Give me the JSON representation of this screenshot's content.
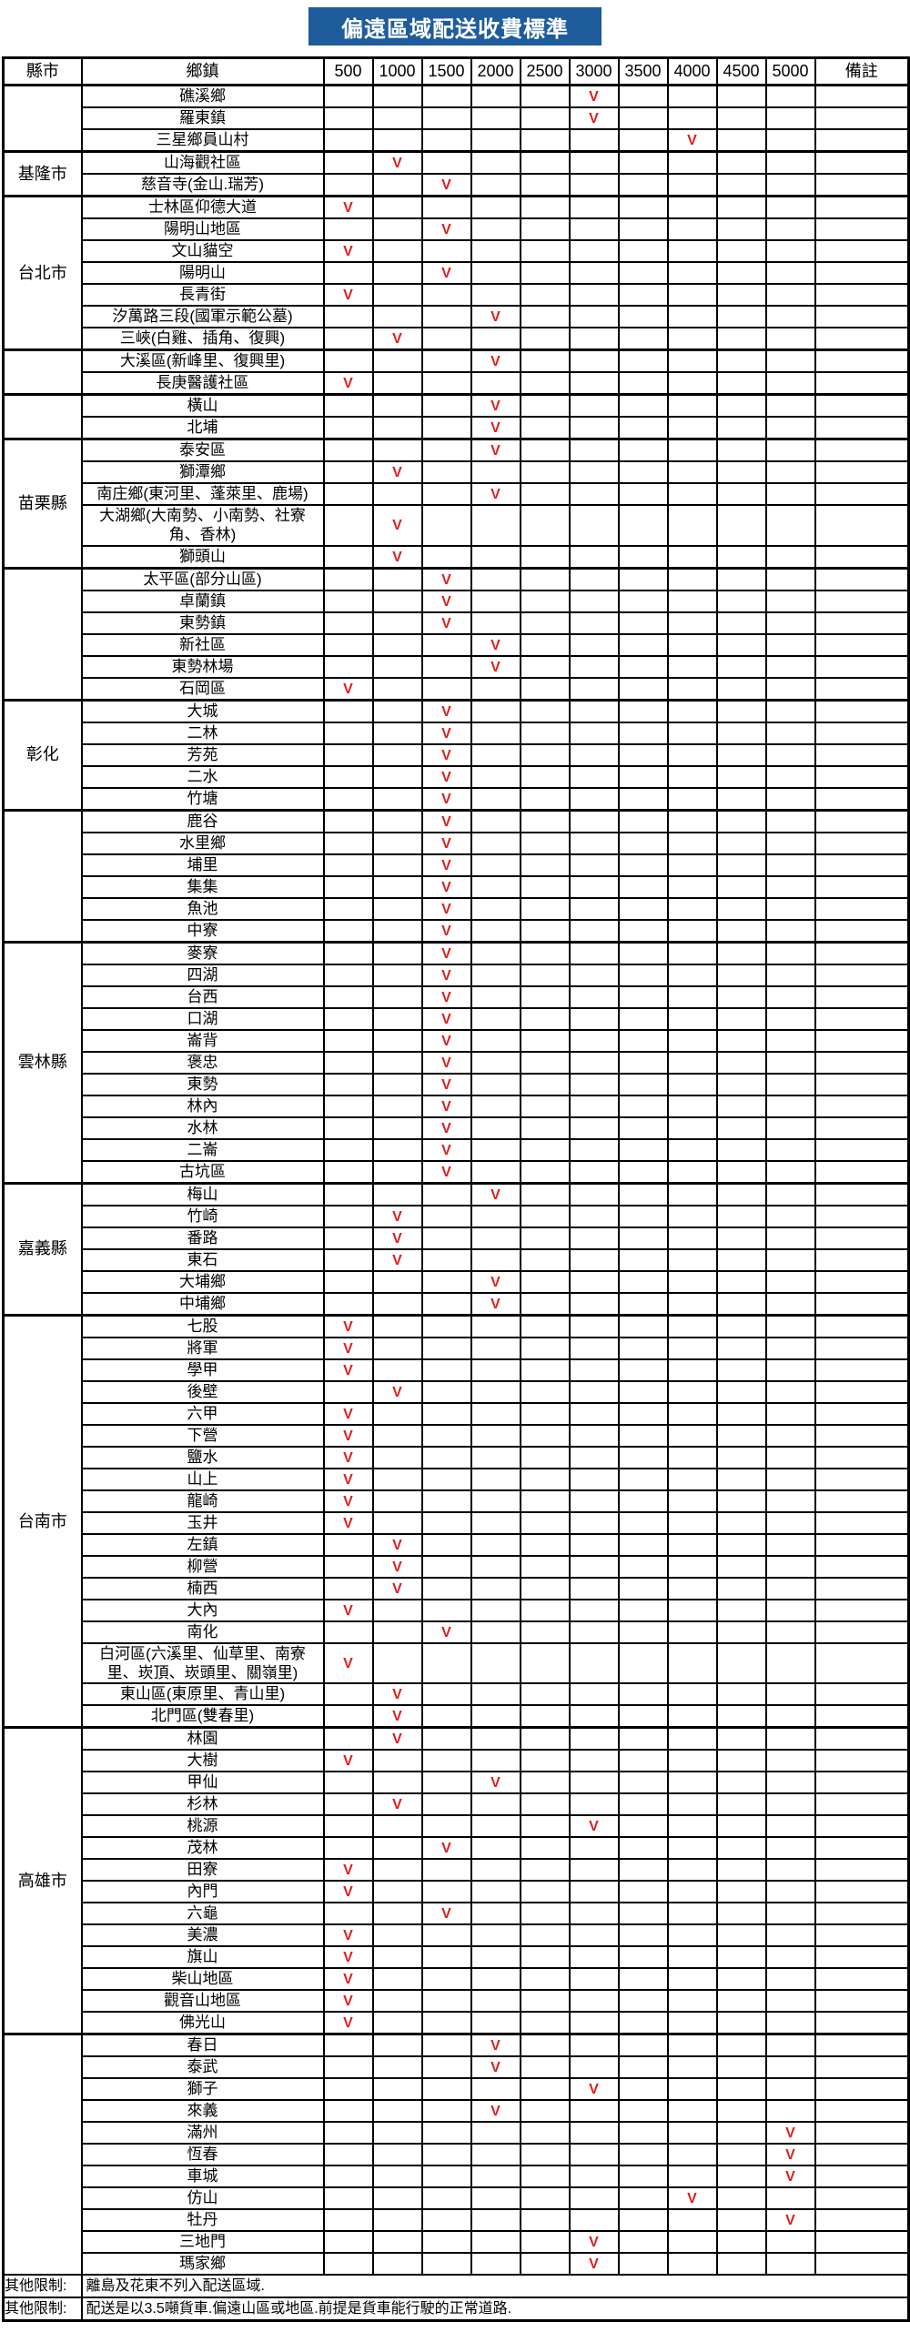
{
  "title": "偏遠區域配送收費標準",
  "colors": {
    "banner_bg": "#1E5C9C",
    "banner_text": "#FFFFFF",
    "check_red": "#E01E1E",
    "border": "#000000"
  },
  "table": {
    "columns": [
      "縣市",
      "鄉鎮",
      "500",
      "1000",
      "1500",
      "2000",
      "2500",
      "3000",
      "3500",
      "4000",
      "4500",
      "5000",
      "備註"
    ],
    "fee_tiers": [
      "500",
      "1000",
      "1500",
      "2000",
      "2500",
      "3000",
      "3500",
      "4000",
      "4500",
      "5000"
    ],
    "check_symbol": "V",
    "groups": [
      {
        "county": "",
        "rows": [
          {
            "township": "礁溪鄉",
            "fee": "3000"
          },
          {
            "township": "羅東鎮",
            "fee": "3000"
          },
          {
            "township": "三星鄉員山村",
            "fee": "4000"
          }
        ]
      },
      {
        "county": "基隆市",
        "rows": [
          {
            "township": "山海觀社區",
            "fee": "1000"
          },
          {
            "township": "慈音寺(金山.瑞芳)",
            "fee": "1500"
          }
        ]
      },
      {
        "county": "台北市",
        "rows": [
          {
            "township": "士林區仰德大道",
            "fee": "500"
          },
          {
            "township": "陽明山地區",
            "fee": "1500"
          },
          {
            "township": "文山貓空",
            "fee": "500"
          },
          {
            "township": "陽明山",
            "fee": "1500"
          },
          {
            "township": "長青街",
            "fee": "500"
          },
          {
            "township": "汐萬路三段(國軍示範公墓)",
            "fee": "2000"
          },
          {
            "township": "三峽(白雞、插角、復興)",
            "fee": "1000"
          }
        ]
      },
      {
        "county": "",
        "rows": [
          {
            "township": "大溪區(新峰里、復興里)",
            "fee": "2000"
          },
          {
            "township": "長庚醫護社區",
            "fee": "500"
          }
        ]
      },
      {
        "county": "",
        "rows": [
          {
            "township": "橫山",
            "fee": "2000"
          },
          {
            "township": "北埔",
            "fee": "2000"
          }
        ]
      },
      {
        "county": "苗栗縣",
        "rows": [
          {
            "township": "泰安區",
            "fee": "2000"
          },
          {
            "township": "獅潭鄉",
            "fee": "1000"
          },
          {
            "township": "南庄鄉(東河里、蓬萊里、鹿場)",
            "fee": "2000"
          },
          {
            "township": "大湖鄉(大南勢、小南勢、社寮角、香林)",
            "fee": "1000"
          },
          {
            "township": "獅頭山",
            "fee": "1000"
          }
        ]
      },
      {
        "county": "",
        "rows": [
          {
            "township": "太平區(部分山區)",
            "fee": "1500"
          },
          {
            "township": "卓蘭鎮",
            "fee": "1500"
          },
          {
            "township": "東勢鎮",
            "fee": "1500"
          },
          {
            "township": "新社區",
            "fee": "2000"
          },
          {
            "township": "東勢林場",
            "fee": "2000"
          },
          {
            "township": "石岡區",
            "fee": "500"
          }
        ]
      },
      {
        "county": "彰化",
        "rows": [
          {
            "township": "大城",
            "fee": "1500"
          },
          {
            "township": "二林",
            "fee": "1500"
          },
          {
            "township": "芳苑",
            "fee": "1500"
          },
          {
            "township": "二水",
            "fee": "1500"
          },
          {
            "township": "竹塘",
            "fee": "1500"
          }
        ]
      },
      {
        "county": "",
        "rows": [
          {
            "township": "鹿谷",
            "fee": "1500"
          },
          {
            "township": "水里鄉",
            "fee": "1500"
          },
          {
            "township": "埔里",
            "fee": "1500"
          },
          {
            "township": "集集",
            "fee": "1500"
          },
          {
            "township": "魚池",
            "fee": "1500"
          },
          {
            "township": "中寮",
            "fee": "1500"
          }
        ]
      },
      {
        "county": "雲林縣",
        "rows": [
          {
            "township": "麥寮",
            "fee": "1500"
          },
          {
            "township": "四湖",
            "fee": "1500"
          },
          {
            "township": "台西",
            "fee": "1500"
          },
          {
            "township": "口湖",
            "fee": "1500"
          },
          {
            "township": "崙背",
            "fee": "1500"
          },
          {
            "township": "褒忠",
            "fee": "1500"
          },
          {
            "township": "東勢",
            "fee": "1500"
          },
          {
            "township": "林內",
            "fee": "1500"
          },
          {
            "township": "水林",
            "fee": "1500"
          },
          {
            "township": "二崙",
            "fee": "1500"
          },
          {
            "township": "古坑區",
            "fee": "1500"
          }
        ]
      },
      {
        "county": "嘉義縣",
        "rows": [
          {
            "township": "梅山",
            "fee": "2000"
          },
          {
            "township": "竹崎",
            "fee": "1000"
          },
          {
            "township": "番路",
            "fee": "1000"
          },
          {
            "township": "東石",
            "fee": "1000"
          },
          {
            "township": "大埔鄉",
            "fee": "2000"
          },
          {
            "township": "中埔鄉",
            "fee": "2000"
          }
        ]
      },
      {
        "county": "台南市",
        "rows": [
          {
            "township": "七股",
            "fee": "500"
          },
          {
            "township": "將軍",
            "fee": "500"
          },
          {
            "township": "學甲",
            "fee": "500"
          },
          {
            "township": "後壁",
            "fee": "1000"
          },
          {
            "township": "六甲",
            "fee": "500"
          },
          {
            "township": "下營",
            "fee": "500"
          },
          {
            "township": "鹽水",
            "fee": "500"
          },
          {
            "township": "山上",
            "fee": "500"
          },
          {
            "township": "龍崎",
            "fee": "500"
          },
          {
            "township": "玉井",
            "fee": "500"
          },
          {
            "township": "左鎮",
            "fee": "1000"
          },
          {
            "township": "柳營",
            "fee": "1000"
          },
          {
            "township": "楠西",
            "fee": "1000"
          },
          {
            "township": "大內",
            "fee": "500"
          },
          {
            "township": "南化",
            "fee": "1500"
          },
          {
            "township": "白河區(六溪里、仙草里、南寮里、崁頂、崁頭里、關嶺里)",
            "fee": "500"
          },
          {
            "township": "東山區(東原里、青山里)",
            "fee": "1000"
          },
          {
            "township": "北門區(雙春里)",
            "fee": "1000"
          }
        ]
      },
      {
        "county": "高雄市",
        "rows": [
          {
            "township": "林園",
            "fee": "1000"
          },
          {
            "township": "大樹",
            "fee": "500"
          },
          {
            "township": "甲仙",
            "fee": "2000"
          },
          {
            "township": "杉林",
            "fee": "1000"
          },
          {
            "township": "桃源",
            "fee": "3000"
          },
          {
            "township": "茂林",
            "fee": "1500"
          },
          {
            "township": "田寮",
            "fee": "500"
          },
          {
            "township": "內門",
            "fee": "500"
          },
          {
            "township": "六龜",
            "fee": "1500"
          },
          {
            "township": "美濃",
            "fee": "500"
          },
          {
            "township": "旗山",
            "fee": "500"
          },
          {
            "township": "柴山地區",
            "fee": "500"
          },
          {
            "township": "觀音山地區",
            "fee": "500"
          },
          {
            "township": "佛光山",
            "fee": "500"
          }
        ]
      },
      {
        "county": "",
        "rows": [
          {
            "township": "春日",
            "fee": "2000"
          },
          {
            "township": "泰武",
            "fee": "2000"
          },
          {
            "township": "獅子",
            "fee": "3000"
          },
          {
            "township": "來義",
            "fee": "2000"
          },
          {
            "township": "滿州",
            "fee": "5000"
          },
          {
            "township": "恆春",
            "fee": "5000"
          },
          {
            "township": "車城",
            "fee": "5000"
          },
          {
            "township": "仿山",
            "fee": "4000"
          },
          {
            "township": "牡丹",
            "fee": "5000"
          },
          {
            "township": "三地門",
            "fee": "3000"
          },
          {
            "township": "瑪家鄉",
            "fee": "3000"
          }
        ]
      }
    ],
    "footnotes": [
      {
        "label": "其他限制:",
        "text": "離島及花東不列入配送區域."
      },
      {
        "label": "其他限制:",
        "text": "配送是以3.5噸貨車.偏遠山區或地區.前提是貨車能行駛的正常道路."
      }
    ]
  }
}
